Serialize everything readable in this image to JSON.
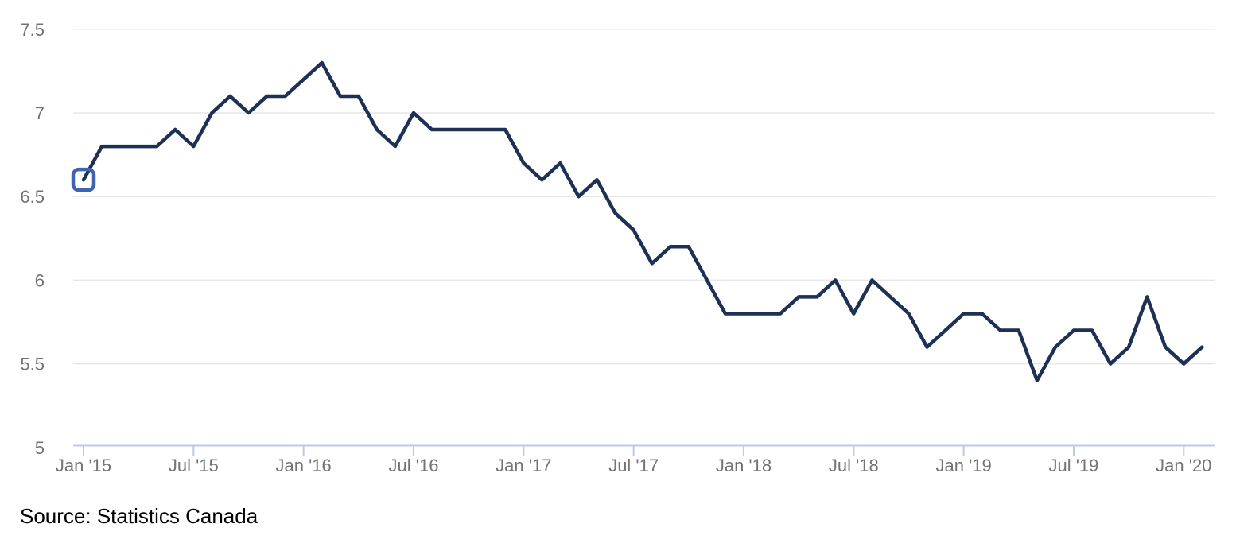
{
  "chart": {
    "source_caption": "Source: Statistics Canada"
  },
  "chart_data": {
    "type": "line",
    "title": "",
    "xlabel": "",
    "ylabel": "",
    "x": [
      "Jan '15",
      "Feb '15",
      "Mar '15",
      "Apr '15",
      "May '15",
      "Jun '15",
      "Jul '15",
      "Aug '15",
      "Sep '15",
      "Oct '15",
      "Nov '15",
      "Dec '15",
      "Jan '16",
      "Feb '16",
      "Mar '16",
      "Apr '16",
      "May '16",
      "Jun '16",
      "Jul '16",
      "Aug '16",
      "Sep '16",
      "Oct '16",
      "Nov '16",
      "Dec '16",
      "Jan '17",
      "Feb '17",
      "Mar '17",
      "Apr '17",
      "May '17",
      "Jun '17",
      "Jul '17",
      "Aug '17",
      "Sep '17",
      "Oct '17",
      "Nov '17",
      "Dec '17",
      "Jan '18",
      "Feb '18",
      "Mar '18",
      "Apr '18",
      "May '18",
      "Jun '18",
      "Jul '18",
      "Aug '18",
      "Sep '18",
      "Oct '18",
      "Nov '18",
      "Dec '18",
      "Jan '19",
      "Feb '19",
      "Mar '19",
      "Apr '19",
      "May '19",
      "Jun '19",
      "Jul '19",
      "Aug '19",
      "Sep '19",
      "Oct '19",
      "Nov '19",
      "Dec '19",
      "Jan '20",
      "Feb '20"
    ],
    "values": [
      6.6,
      6.8,
      6.8,
      6.8,
      6.8,
      6.9,
      6.8,
      7.0,
      7.1,
      7.0,
      7.1,
      7.1,
      7.2,
      7.3,
      7.1,
      7.1,
      6.9,
      6.8,
      7.0,
      6.9,
      6.9,
      6.9,
      6.9,
      6.9,
      6.7,
      6.6,
      6.7,
      6.5,
      6.6,
      6.4,
      6.3,
      6.1,
      6.2,
      6.2,
      6.0,
      5.8,
      5.8,
      5.8,
      5.8,
      5.9,
      5.9,
      6.0,
      5.8,
      6.0,
      5.9,
      5.8,
      5.6,
      5.7,
      5.8,
      5.8,
      5.7,
      5.7,
      5.4,
      5.6,
      5.7,
      5.7,
      5.5,
      5.6,
      5.9,
      5.6,
      5.5,
      5.6
    ],
    "ylim": [
      5,
      7.5
    ],
    "y_ticks": [
      7.5,
      7,
      6.5,
      6,
      5.5,
      5
    ],
    "y_tick_labels": [
      "7.5",
      "7",
      "6.5",
      "6",
      "5.5",
      "5"
    ],
    "x_tick_labels": [
      "Jan '15",
      "Jul '15",
      "Jan '16",
      "Jul '16",
      "Jan '17",
      "Jul '17",
      "Jan '18",
      "Jul '18",
      "Jan '19",
      "Jul '19",
      "Jan '20"
    ],
    "x_tick_interval_months": 6,
    "grid": "horizontal",
    "legend": "none",
    "first_point_highlighted": true,
    "colors": {
      "line": "#1c3154",
      "first_point_marker": "#3e66ae",
      "gridline": "#e7e7e7",
      "axis_line": "#bdc8e6",
      "tick_label": "#737373",
      "source_text": "#000000",
      "background": "#ffffff"
    }
  }
}
